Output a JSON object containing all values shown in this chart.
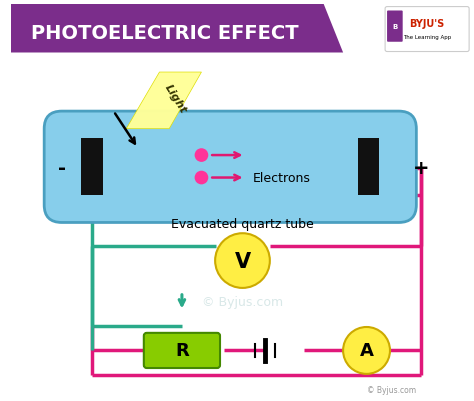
{
  "title": "PHOTOELECTRIC EFFECT",
  "title_bg": "#7b2d8b",
  "title_color": "#ffffff",
  "background_color": "#ffffff",
  "tube_color": "#87ceeb",
  "tube_border_color": "#4a9fc0",
  "wire_color_teal": "#2aaa8a",
  "wire_color_pink": "#e0187a",
  "electron_color": "#e01870",
  "light_color": "#ffff88",
  "light_label": "Light",
  "electron_label": "Electrons",
  "tube_label": "Evacuated quartz tube",
  "voltmeter_label": "V",
  "ammeter_label": "A",
  "resistor_label": "R",
  "minus_label": "-",
  "plus_label": "+",
  "byju_text": "BYJU'S",
  "byju_sub": "The Learning App",
  "watermark": "© Byjus.com",
  "copyright": "© Byjus.com"
}
